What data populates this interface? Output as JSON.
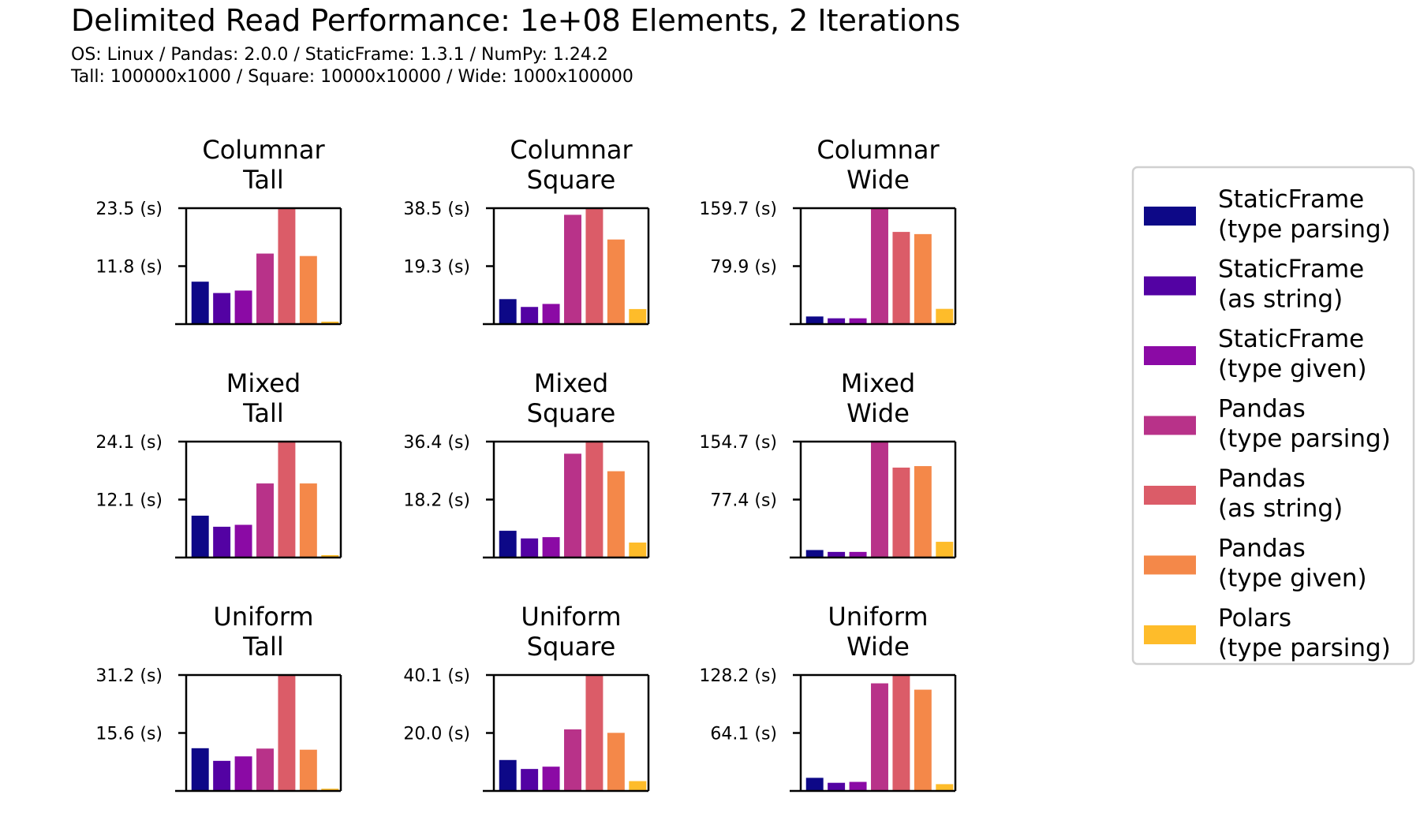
{
  "figure": {
    "title": "Delimited Read Performance: 1e+08 Elements, 2 Iterations",
    "subtitle_lines": [
      "OS: Linux / Pandas: 2.0.0 / StaticFrame: 1.3.1 / NumPy: 1.24.2",
      "Tall: 100000x1000 / Square: 10000x10000 / Wide: 1000x100000"
    ]
  },
  "legend": {
    "placement": "right",
    "items": [
      {
        "line1": "StaticFrame",
        "line2": "(type parsing)",
        "color": "#0d0887"
      },
      {
        "line1": "StaticFrame",
        "line2": "(as string)",
        "color": "#5302a3"
      },
      {
        "line1": "StaticFrame",
        "line2": "(type given)",
        "color": "#8b0aa5"
      },
      {
        "line1": "Pandas",
        "line2": "(type parsing)",
        "color": "#b83289"
      },
      {
        "line1": "Pandas",
        "line2": "(as string)",
        "color": "#db5c68"
      },
      {
        "line1": "Pandas",
        "line2": "(type given)",
        "color": "#f48849"
      },
      {
        "line1": "Polars",
        "line2": "(type parsing)",
        "color": "#febc2a"
      }
    ]
  },
  "chart_data": [
    {
      "type": "bar",
      "title_line1": "Columnar",
      "title_line2": "Tall",
      "ytick_labels": [
        "23.5 (s)",
        "11.8 (s)"
      ],
      "ylim": [
        0,
        23.5
      ],
      "values": [
        8.6,
        6.3,
        6.8,
        14.3,
        23.5,
        13.8,
        0.5
      ]
    },
    {
      "type": "bar",
      "title_line1": "Columnar",
      "title_line2": "Square",
      "ytick_labels": [
        "38.5 (s)",
        "19.3 (s)"
      ],
      "ylim": [
        0,
        38.5
      ],
      "values": [
        8.3,
        5.7,
        6.7,
        36.3,
        38.4,
        28.1,
        5.0
      ]
    },
    {
      "type": "bar",
      "title_line1": "Columnar",
      "title_line2": "Wide",
      "ytick_labels": [
        "159.7 (s)",
        "79.9 (s)"
      ],
      "ylim": [
        0,
        159.7
      ],
      "values": [
        10.5,
        8.0,
        8.0,
        159.7,
        127.0,
        124.0,
        21.0
      ]
    },
    {
      "type": "bar",
      "title_line1": "Mixed",
      "title_line2": "Tall",
      "ytick_labels": [
        "24.1 (s)",
        "12.1 (s)"
      ],
      "ylim": [
        0,
        24.1
      ],
      "values": [
        8.7,
        6.4,
        6.8,
        15.4,
        24.1,
        15.4,
        0.5
      ]
    },
    {
      "type": "bar",
      "title_line1": "Mixed",
      "title_line2": "Square",
      "ytick_labels": [
        "36.4 (s)",
        "18.2 (s)"
      ],
      "ylim": [
        0,
        36.4
      ],
      "values": [
        8.4,
        6.0,
        6.4,
        32.6,
        36.3,
        27.1,
        4.7
      ]
    },
    {
      "type": "bar",
      "title_line1": "Mixed",
      "title_line2": "Wide",
      "ytick_labels": [
        "154.7 (s)",
        "77.4 (s)"
      ],
      "ylim": [
        0,
        154.7
      ],
      "values": [
        10.0,
        7.5,
        7.5,
        154.0,
        120.0,
        122.0,
        21.0
      ]
    },
    {
      "type": "bar",
      "title_line1": "Uniform",
      "title_line2": "Tall",
      "ytick_labels": [
        "31.2 (s)",
        "15.6 (s)"
      ],
      "ylim": [
        0,
        31.2
      ],
      "values": [
        11.5,
        8.1,
        9.3,
        11.4,
        31.1,
        11.1,
        0.6
      ]
    },
    {
      "type": "bar",
      "title_line1": "Uniform",
      "title_line2": "Square",
      "ytick_labels": [
        "40.1 (s)",
        "20.0 (s)"
      ],
      "ylim": [
        0,
        40.1
      ],
      "values": [
        10.7,
        7.6,
        8.4,
        21.3,
        39.9,
        20.1,
        3.4
      ]
    },
    {
      "type": "bar",
      "title_line1": "Uniform",
      "title_line2": "Wide",
      "ytick_labels": [
        "128.2 (s)",
        "64.1 (s)"
      ],
      "ylim": [
        0,
        128.2
      ],
      "values": [
        14.5,
        9.0,
        10.0,
        119.0,
        128.0,
        112.0,
        7.5
      ]
    }
  ]
}
